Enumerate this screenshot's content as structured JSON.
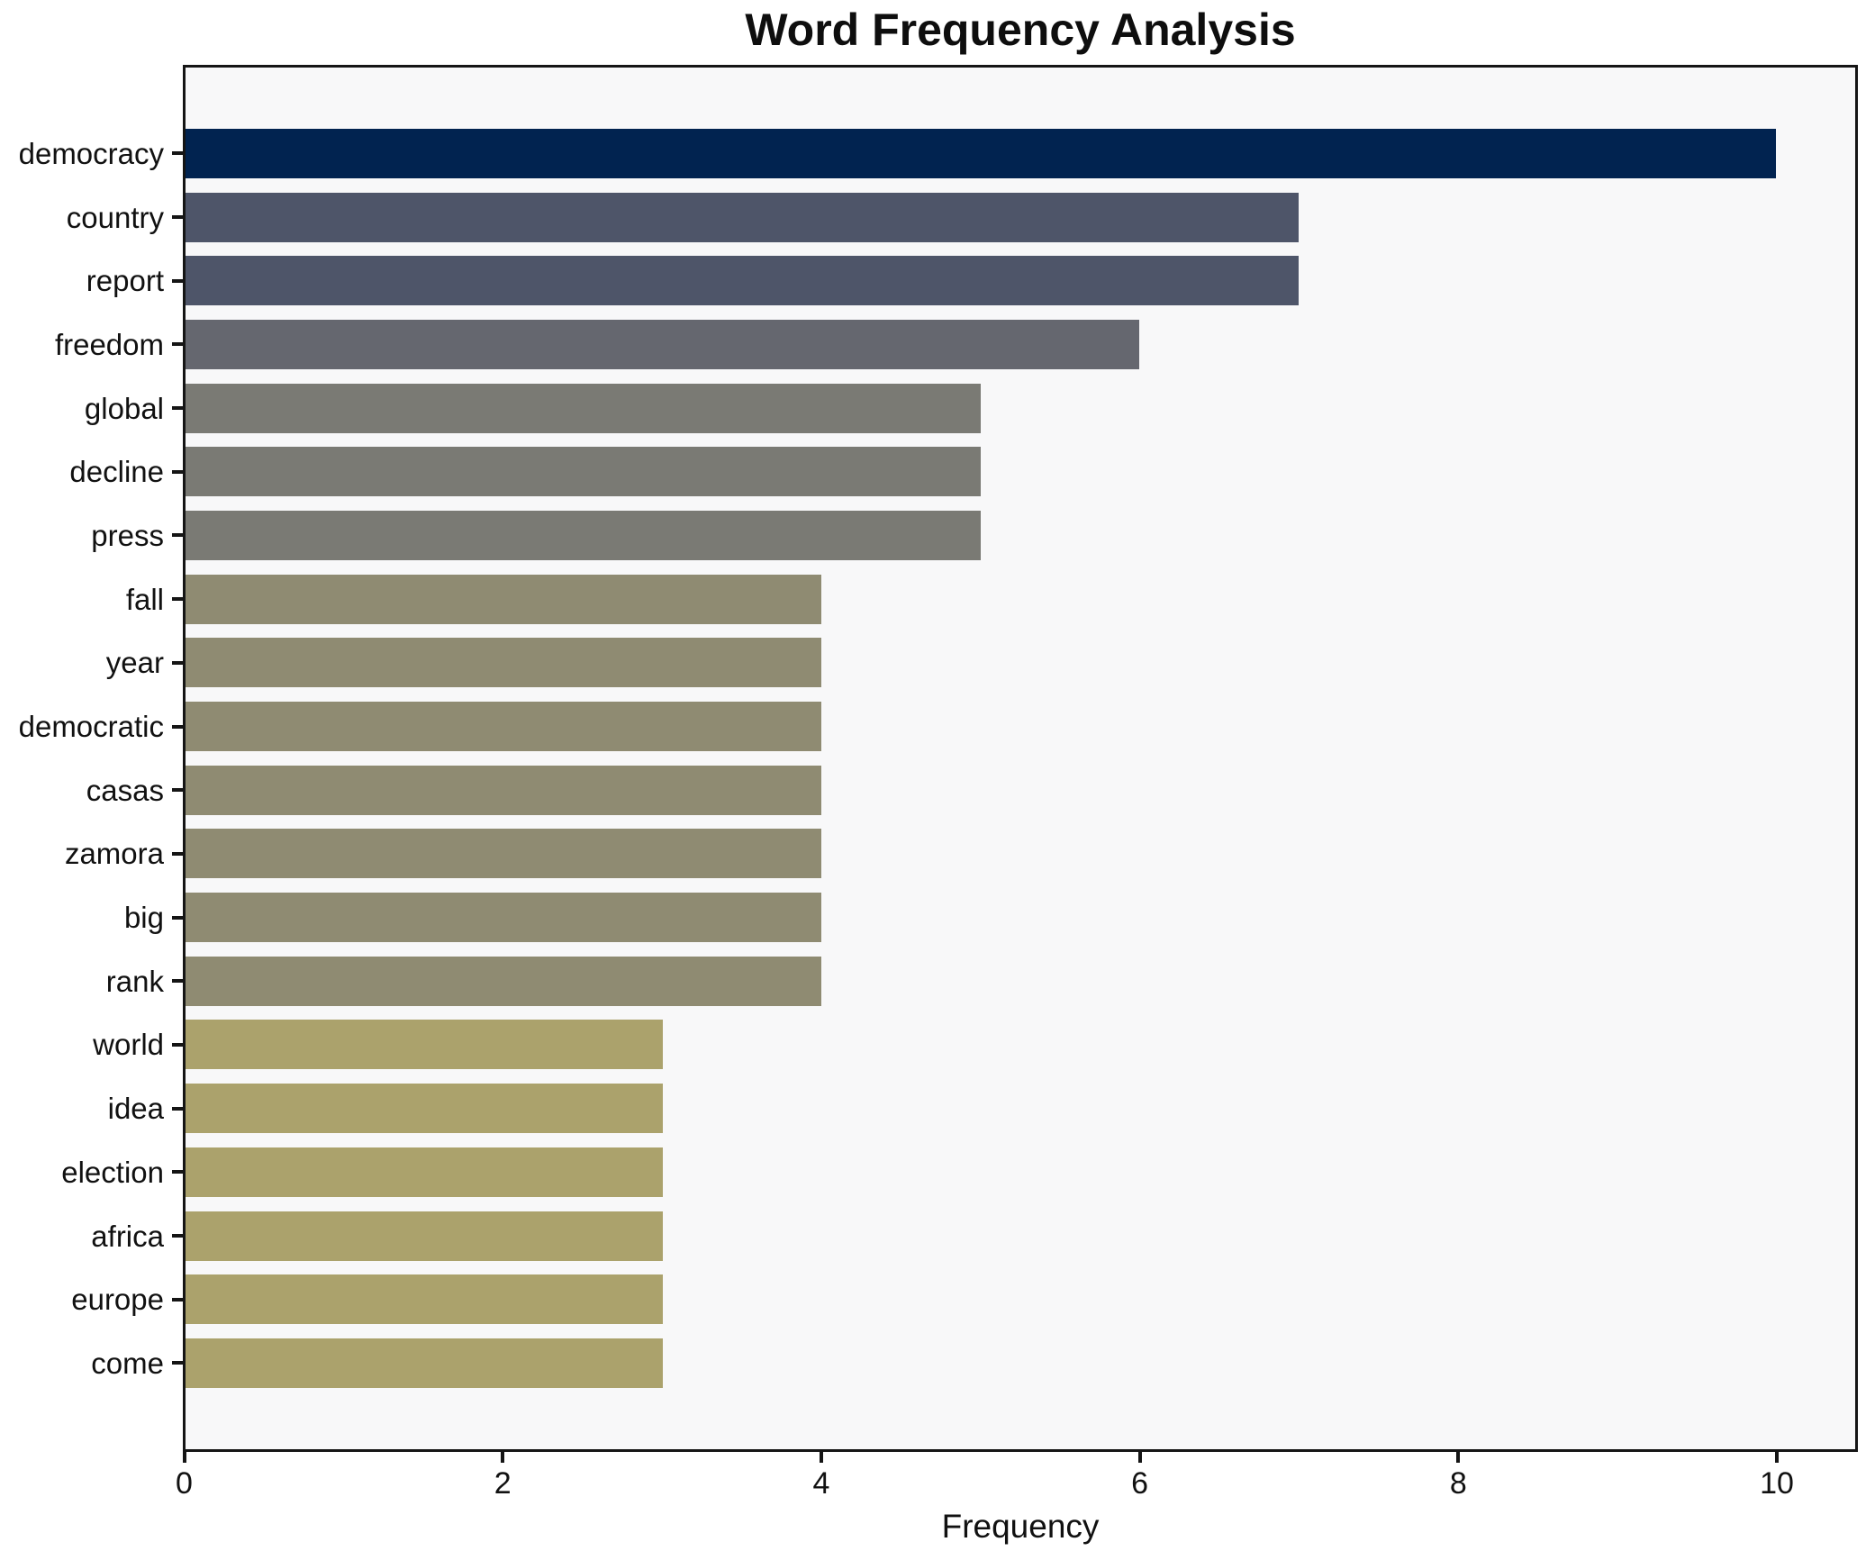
{
  "chart_data": {
    "type": "bar",
    "orientation": "horizontal",
    "title": "Word Frequency Analysis",
    "xlabel": "Frequency",
    "ylabel": "",
    "xlim": [
      0,
      10.5
    ],
    "x_ticks": [
      0,
      2,
      4,
      6,
      8,
      10
    ],
    "grid": false,
    "legend": null,
    "plot_background": "#f8f8f9",
    "categories": [
      "democracy",
      "country",
      "report",
      "freedom",
      "global",
      "decline",
      "press",
      "fall",
      "year",
      "democratic",
      "casas",
      "zamora",
      "big",
      "rank",
      "world",
      "idea",
      "election",
      "africa",
      "europe",
      "come"
    ],
    "values": [
      10,
      7,
      7,
      6,
      5,
      5,
      5,
      4,
      4,
      4,
      4,
      4,
      4,
      4,
      3,
      3,
      3,
      3,
      3,
      3
    ],
    "bar_colors": [
      "#012350",
      "#4e5569",
      "#4e5569",
      "#65676f",
      "#7a7a74",
      "#7a7a74",
      "#7a7a74",
      "#8f8b72",
      "#8f8b72",
      "#8f8b72",
      "#8f8b72",
      "#8f8b72",
      "#8f8b72",
      "#8f8b72",
      "#aba26c",
      "#aba26c",
      "#aba26c",
      "#aba26c",
      "#aba26c",
      "#aba26c"
    ]
  }
}
